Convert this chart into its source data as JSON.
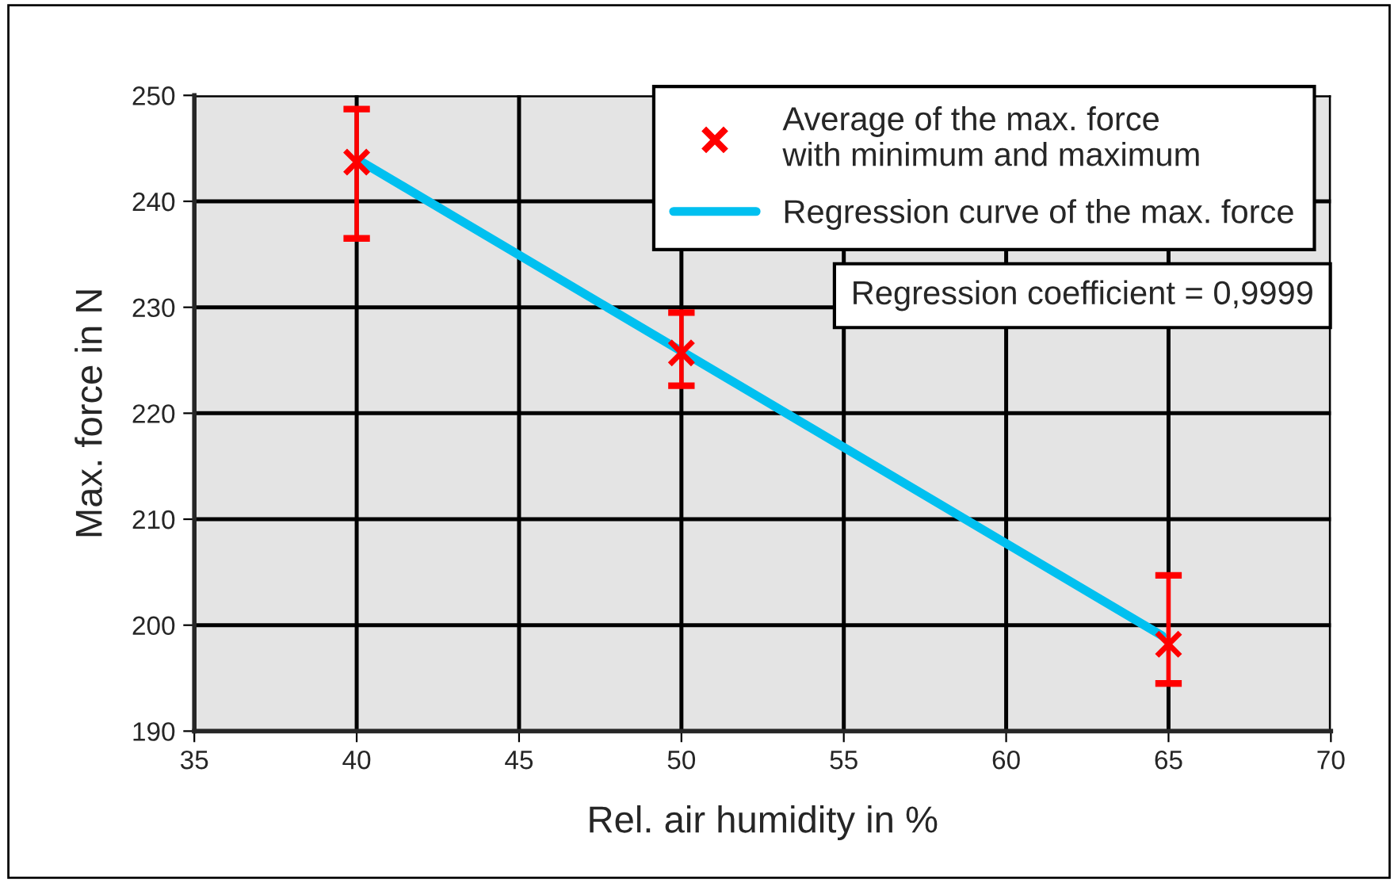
{
  "chart_data": {
    "type": "scatter",
    "xlabel": "Rel. air humidity in %",
    "ylabel": "Max. force in N",
    "x": [
      40,
      50,
      65
    ],
    "series": [
      {
        "name": "Average of the max. force\nwith minimum and maximum",
        "color": "#ff0000",
        "marker": "cross",
        "values": [
          243.7,
          225.7,
          198.2
        ],
        "errors": [
          [
            236.5,
            248.7
          ],
          [
            222.6,
            229.5
          ],
          [
            194.5,
            204.7
          ]
        ]
      },
      {
        "name": "Regression curve of the max. force",
        "type": "line",
        "color": "#00c0f0",
        "line_style": "solid",
        "x": [
          40,
          64.8
        ],
        "values": [
          244.0,
          199.0
        ]
      }
    ],
    "annotations": [
      "Regression coefficient = 0,9999"
    ],
    "xlim": [
      35,
      70
    ],
    "xticks": [
      35,
      40,
      45,
      50,
      55,
      60,
      65,
      70
    ],
    "ylim": [
      190,
      250
    ],
    "yticks": [
      190,
      200,
      210,
      220,
      230,
      240,
      250
    ],
    "grid": true,
    "legend": "top right"
  }
}
